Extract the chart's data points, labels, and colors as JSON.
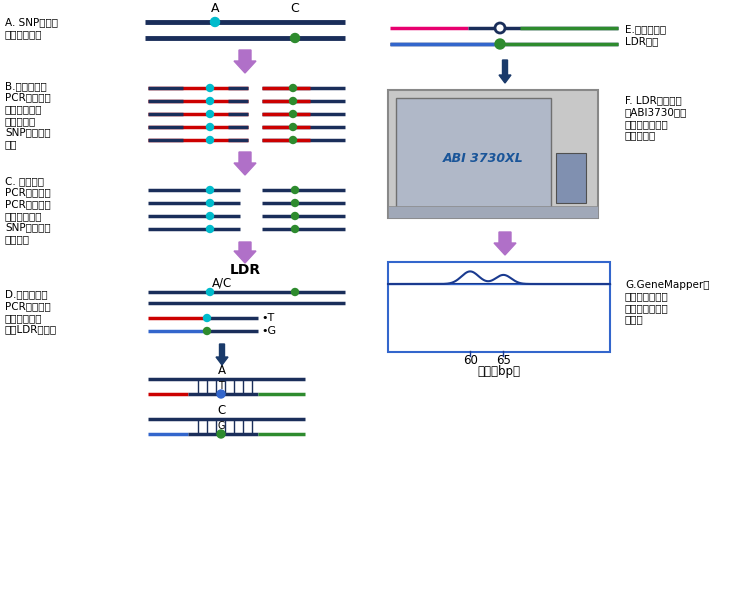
{
  "bg_color": "#ffffff",
  "dark_blue": "#1a2e5a",
  "red_color": "#cc0000",
  "green_color": "#2e8b2e",
  "blue_color": "#3366cc",
  "cyan_color": "#00bbcc",
  "pink_color": "#e8006f",
  "purple_arrow": "#b070c8",
  "dark_arrow": "#1a3a6a",
  "label_a_text": "A. SNP位点的\n两个等位基因",
  "label_b_text": "B.多重长片段\nPCR跨越高同\n源区段，实现\n特异性扩增\nSNP位点侧翼\n序列",
  "label_c_text": "C. 多重巢式\nPCR以上一步\nPCR产物为模\n板特异性扩增\nSNP侧翼小片\n段序列。",
  "label_d_text": "D.以多重巢式\nPCR扩增产物\n为模板，进行\n多重LDR反应。",
  "label_e_text": "E.长度不同的\nLDR产物",
  "label_f_text": "F. LDR反应产物\n在ABI3730基因\n测序仪上进行毛\n细管电泳。",
  "label_g_text": "G.GeneMapper读\n数，根据片段大\n小区分不同等位\n基因。",
  "ldr_label": "LDR",
  "abi_label": "ABI 3730XL",
  "xlabel": "长度（bp）",
  "xtick60": "60",
  "xtick65": "65"
}
